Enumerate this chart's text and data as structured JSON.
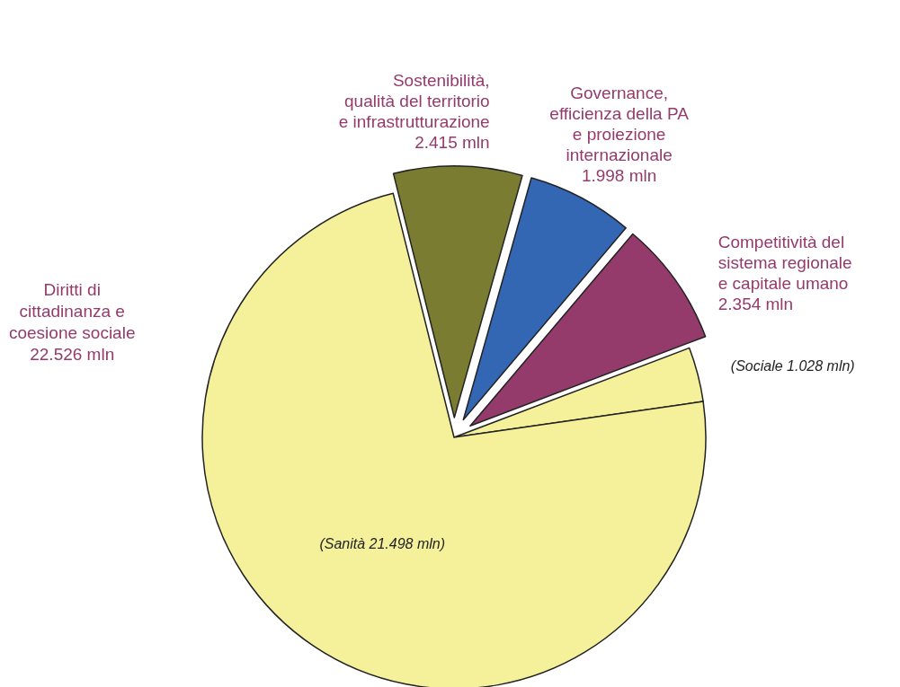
{
  "chart_data": {
    "type": "pie",
    "categories": [
      "Sostenibilità,\nqualità del territorio\ne infrastrutturazione\n2.415 mln",
      "Governance,\nefficienza della PA\ne proiezione\ninternazionale\n1.998 mln",
      "Competitività del\nsistema regionale\ne capitale umano\n2.354 mln",
      "(Sociale 1.028 mln)",
      "(Sanità 21.498 mln)"
    ],
    "values": [
      2.415,
      1.998,
      2.354,
      1.028,
      21.498
    ],
    "colors": [
      "#7a7d31",
      "#3366b3",
      "#943b6c",
      "#f5f09a",
      "#f5f09a"
    ],
    "annotations": [
      "Diritti di\ncittadinanza e\ncoesione sociale\n22.526 mln"
    ],
    "legend": false
  }
}
